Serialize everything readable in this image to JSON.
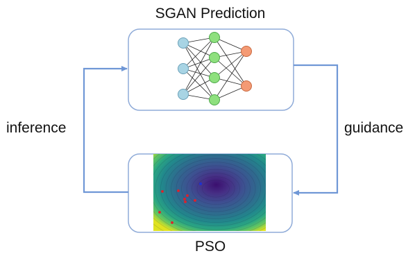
{
  "top_box": {
    "title": "SGAN Prediction"
  },
  "bottom_box": {
    "title": "PSO"
  },
  "arrows": {
    "left_label": "inference",
    "right_label": "guidance"
  },
  "colors": {
    "box_border": "#8fabd8",
    "arrow": "#6f97d6",
    "input_node": "#a8d4e4",
    "hidden_node": "#8ee07e",
    "output_node": "#f49a74",
    "particle": "#e0202a",
    "best_particle": "#2030d0"
  },
  "neural_network": {
    "layers": [
      3,
      4,
      2
    ]
  },
  "pso_particles": {
    "count": 9,
    "best_count": 1
  },
  "icons": [
    "neural-network-icon",
    "contour-landscape-icon"
  ]
}
